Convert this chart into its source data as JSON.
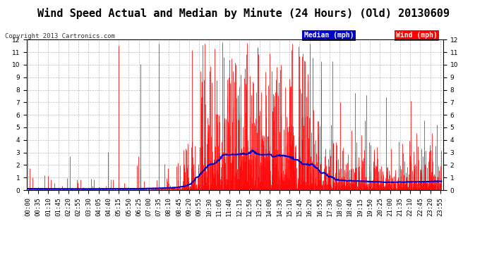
{
  "title": "Wind Speed Actual and Median by Minute (24 Hours) (Old) 20130609",
  "copyright": "Copyright 2013 Cartronics.com",
  "ylim": [
    0.0,
    12.0
  ],
  "yticks": [
    0.0,
    1.0,
    2.0,
    3.0,
    4.0,
    5.0,
    6.0,
    7.0,
    8.0,
    9.0,
    10.0,
    11.0,
    12.0
  ],
  "bg_color": "#ffffff",
  "plot_bg_color": "#ffffff",
  "grid_color": "#bbbbbb",
  "wind_color": "#ff0000",
  "median_color": "#0000cc",
  "legend_median_bg": "#0000cc",
  "legend_wind_bg": "#ff0000",
  "title_fontsize": 11,
  "tick_label_fontsize": 6.5,
  "num_minutes": 1440,
  "tick_step": 35
}
